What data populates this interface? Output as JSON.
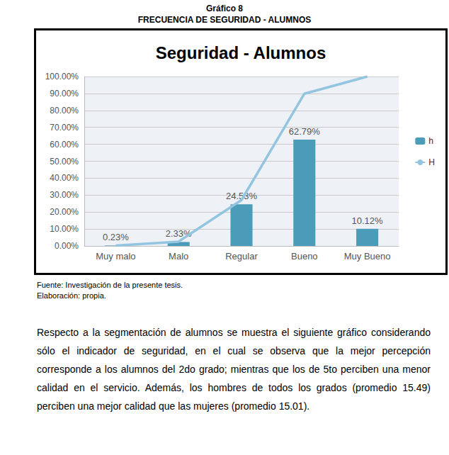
{
  "header": {
    "title": "Gráfico 8",
    "subtitle": "FRECUENCIA DE SEGURIDAD - ALUMNOS"
  },
  "chart_data": {
    "type": "bar",
    "title": "Seguridad - Alumnos",
    "categories": [
      "Muy malo",
      "Malo",
      "Regular",
      "Bueno",
      "Muy Bueno"
    ],
    "series": [
      {
        "name": "h",
        "type": "bar",
        "color": "#4a9cb8",
        "values": [
          0.23,
          2.33,
          24.53,
          62.79,
          10.12
        ],
        "value_labels": [
          "0.23%",
          "2.33%",
          "24.53%",
          "62.79%",
          "10.12%"
        ]
      },
      {
        "name": "H",
        "type": "line",
        "color": "#93c5e0",
        "values": [
          0.23,
          2.56,
          27.09,
          89.88,
          100
        ]
      }
    ],
    "ylim": [
      0,
      100
    ],
    "yticks": [
      {
        "value": 0,
        "label": "0.00%"
      },
      {
        "value": 10,
        "label": "10.00%"
      },
      {
        "value": 20,
        "label": "20.00%"
      },
      {
        "value": 30,
        "label": "30.00%"
      },
      {
        "value": 40,
        "label": "40.00%"
      },
      {
        "value": 50,
        "label": "50.00%"
      },
      {
        "value": 60,
        "label": "60.00%"
      },
      {
        "value": 70,
        "label": "70.00%"
      },
      {
        "value": 80,
        "label": "80.00%"
      },
      {
        "value": 90,
        "label": "90.00%"
      },
      {
        "value": 100,
        "label": "100.00%"
      }
    ],
    "grid": true,
    "legend": "right",
    "data_labels": true
  },
  "notes": [
    "Fuente: Investigación de la presente tesis.",
    "Elaboración: propia."
  ],
  "paragraph": "Respecto a la segmentación de alumnos se muestra el siguiente gráfico considerando sólo el indicador de seguridad, en el cual se observa que la mejor percepción corresponde a los alumnos del 2do grado; mientras que los de 5to perciben una menor calidad en el servicio. Además, los hombres de todos los grados (promedio 15.49) perciben una mejor calidad que las mujeres (promedio 15.01)."
}
